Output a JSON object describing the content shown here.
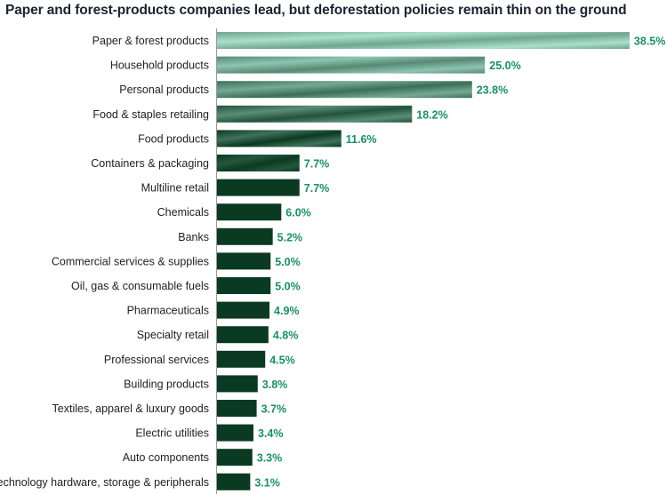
{
  "chart_data": {
    "type": "bar",
    "orientation": "horizontal",
    "title": "Paper and forest-products companies lead, but deforestation policies remain thin on the ground",
    "categories": [
      "Paper & forest products",
      "Household products",
      "Personal products",
      "Food & staples retailing",
      "Food products",
      "Containers & packaging",
      "Multiline retail",
      "Chemicals",
      "Banks",
      "Commercial services & supplies",
      "Oil, gas & consumable fuels",
      "Pharmaceuticals",
      "Specialty retail",
      "Professional services",
      "Building products",
      "Textiles, apparel & luxury goods",
      "Electric utilities",
      "Auto components",
      "Technology hardware, storage & peripherals"
    ],
    "values": [
      38.5,
      25.0,
      23.8,
      18.2,
      11.6,
      7.7,
      7.7,
      6.0,
      5.2,
      5.0,
      5.0,
      4.9,
      4.8,
      4.5,
      3.8,
      3.7,
      3.4,
      3.3,
      3.1
    ],
    "value_labels": [
      "38.5%",
      "25.0%",
      "23.8%",
      "18.2%",
      "11.6%",
      "7.7%",
      "7.7%",
      "6.0%",
      "5.2%",
      "5.0%",
      "5.0%",
      "4.9%",
      "4.8%",
      "4.5%",
      "3.8%",
      "3.7%",
      "3.4%",
      "3.3%",
      "3.1%"
    ],
    "xlim": [
      0,
      40
    ],
    "unit": "%",
    "grid": false,
    "legend": "none",
    "colors": {
      "label": "#17935f",
      "bar_light": "#a8e0cc",
      "bar_dark": "#0b3a22",
      "axis": "#999999"
    }
  }
}
